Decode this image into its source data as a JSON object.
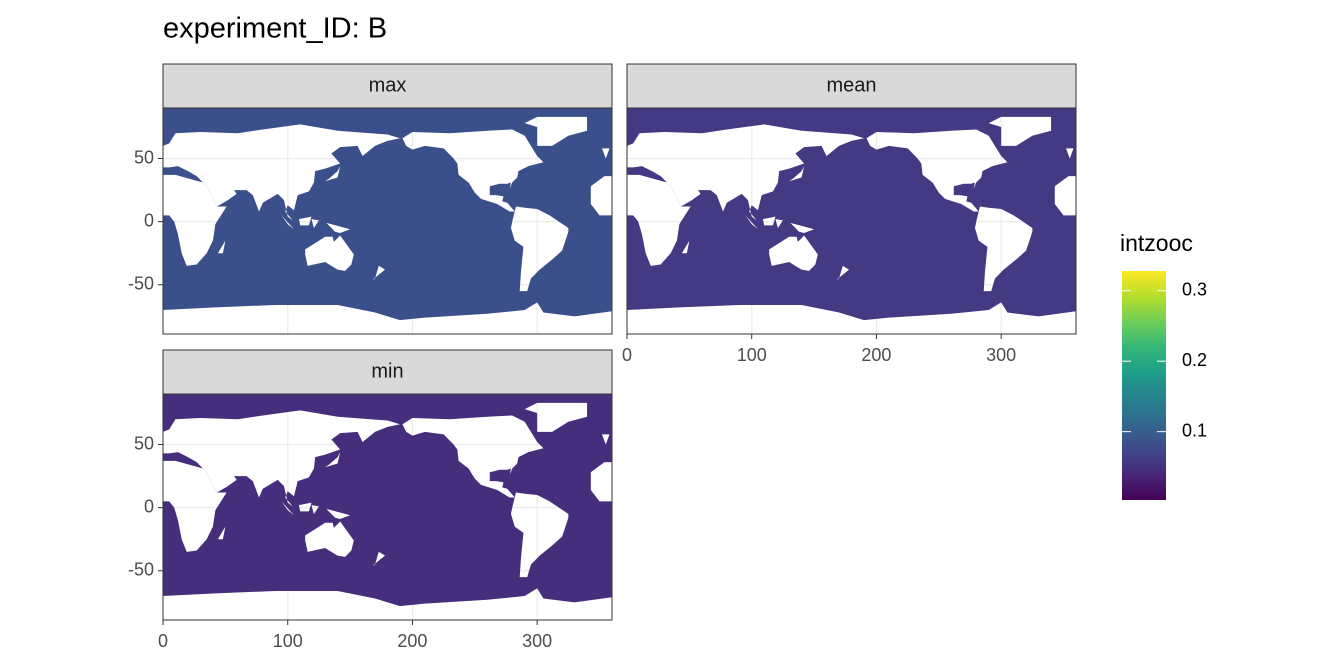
{
  "chart_data": {
    "type": "raster",
    "title": "experiment_ID: B",
    "facets": [
      {
        "name": "max",
        "color": "#3b4f8a"
      },
      {
        "name": "mean",
        "color": "#443a84"
      },
      {
        "name": "min",
        "color": "#472e7c"
      }
    ],
    "xlim": [
      0,
      360
    ],
    "xticks": [
      0,
      100,
      200,
      300
    ],
    "ylim": [
      -89,
      90
    ],
    "yticks": [
      -50,
      0,
      50
    ],
    "grid": true,
    "legend": {
      "title": "intzooc",
      "lim": [
        0.003,
        0.328
      ],
      "ticks": [
        0.1,
        0.2,
        0.3
      ],
      "colors": [
        "#440154",
        "#482878",
        "#3e4989",
        "#31688e",
        "#26828e",
        "#1f9e89",
        "#35b779",
        "#6ece58",
        "#b5de2b",
        "#fde725"
      ]
    }
  }
}
